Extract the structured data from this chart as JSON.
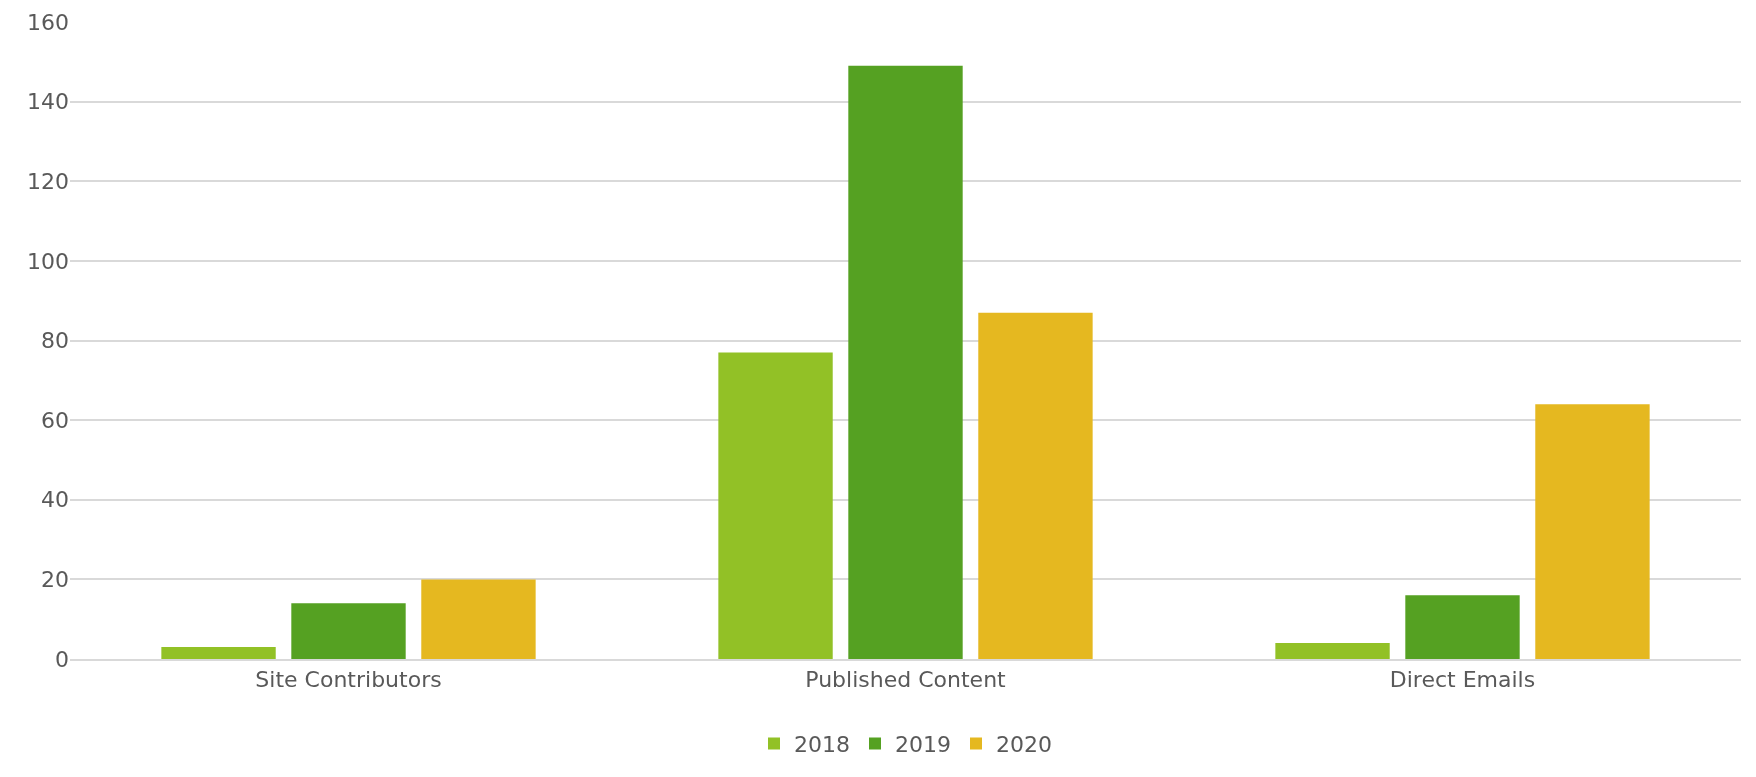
{
  "chart_data": {
    "type": "bar",
    "categories": [
      "Site Contributors",
      "Published Content",
      "Direct Emails"
    ],
    "series": [
      {
        "name": "2018",
        "color": "#92c126",
        "values": [
          3,
          77,
          4
        ]
      },
      {
        "name": "2019",
        "color": "#55a122",
        "values": [
          14,
          149,
          16
        ]
      },
      {
        "name": "2020",
        "color": "#e5b820",
        "values": [
          20,
          87,
          64
        ]
      }
    ],
    "ylim": [
      0,
      160
    ],
    "yticks": [
      0,
      20,
      40,
      60,
      80,
      100,
      120,
      140,
      160
    ],
    "grid": "y",
    "legend": "bottom"
  }
}
